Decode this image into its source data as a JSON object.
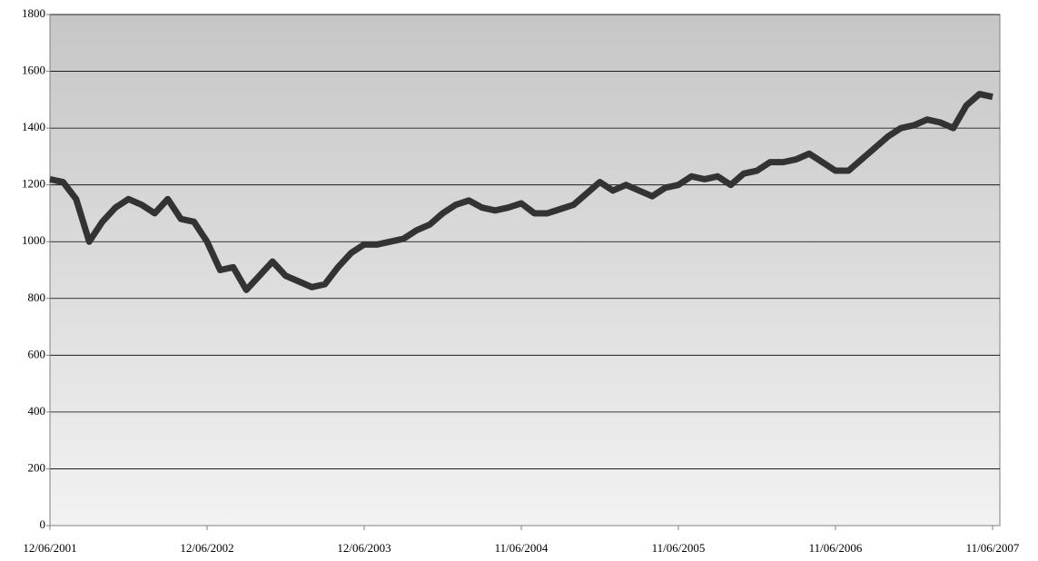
{
  "chart_data": {
    "type": "line",
    "categories": [
      "12/06/2001",
      null,
      null,
      null,
      null,
      null,
      null,
      null,
      null,
      null,
      null,
      null,
      "12/06/2002",
      null,
      null,
      null,
      null,
      null,
      null,
      null,
      null,
      null,
      null,
      null,
      "12/06/2003",
      null,
      null,
      null,
      null,
      null,
      null,
      null,
      null,
      null,
      null,
      null,
      "11/06/2004",
      null,
      null,
      null,
      null,
      null,
      null,
      null,
      null,
      null,
      null,
      null,
      "11/06/2005",
      null,
      null,
      null,
      null,
      null,
      null,
      null,
      null,
      null,
      null,
      null,
      "11/06/2006",
      null,
      null,
      null,
      null,
      null,
      null,
      null,
      null,
      null,
      null,
      null,
      "11/06/2007"
    ],
    "values": [
      1220,
      1210,
      1150,
      1000,
      1070,
      1120,
      1150,
      1130,
      1100,
      1150,
      1080,
      1070,
      1000,
      900,
      910,
      830,
      880,
      930,
      880,
      860,
      840,
      850,
      910,
      960,
      990,
      990,
      1000,
      1010,
      1040,
      1060,
      1100,
      1130,
      1145,
      1120,
      1110,
      1120,
      1135,
      1100,
      1100,
      1115,
      1130,
      1170,
      1210,
      1180,
      1200,
      1180,
      1160,
      1190,
      1200,
      1230,
      1220,
      1230,
      1200,
      1240,
      1250,
      1280,
      1280,
      1290,
      1310,
      1280,
      1250,
      1250,
      1290,
      1330,
      1370,
      1400,
      1410,
      1430,
      1420,
      1400,
      1480,
      1520,
      1510
    ],
    "color": "#333333",
    "ylim": [
      0,
      1800
    ],
    "yticks": [
      0,
      200,
      400,
      600,
      800,
      1000,
      1200,
      1400,
      1600,
      1800
    ],
    "grid": true
  }
}
